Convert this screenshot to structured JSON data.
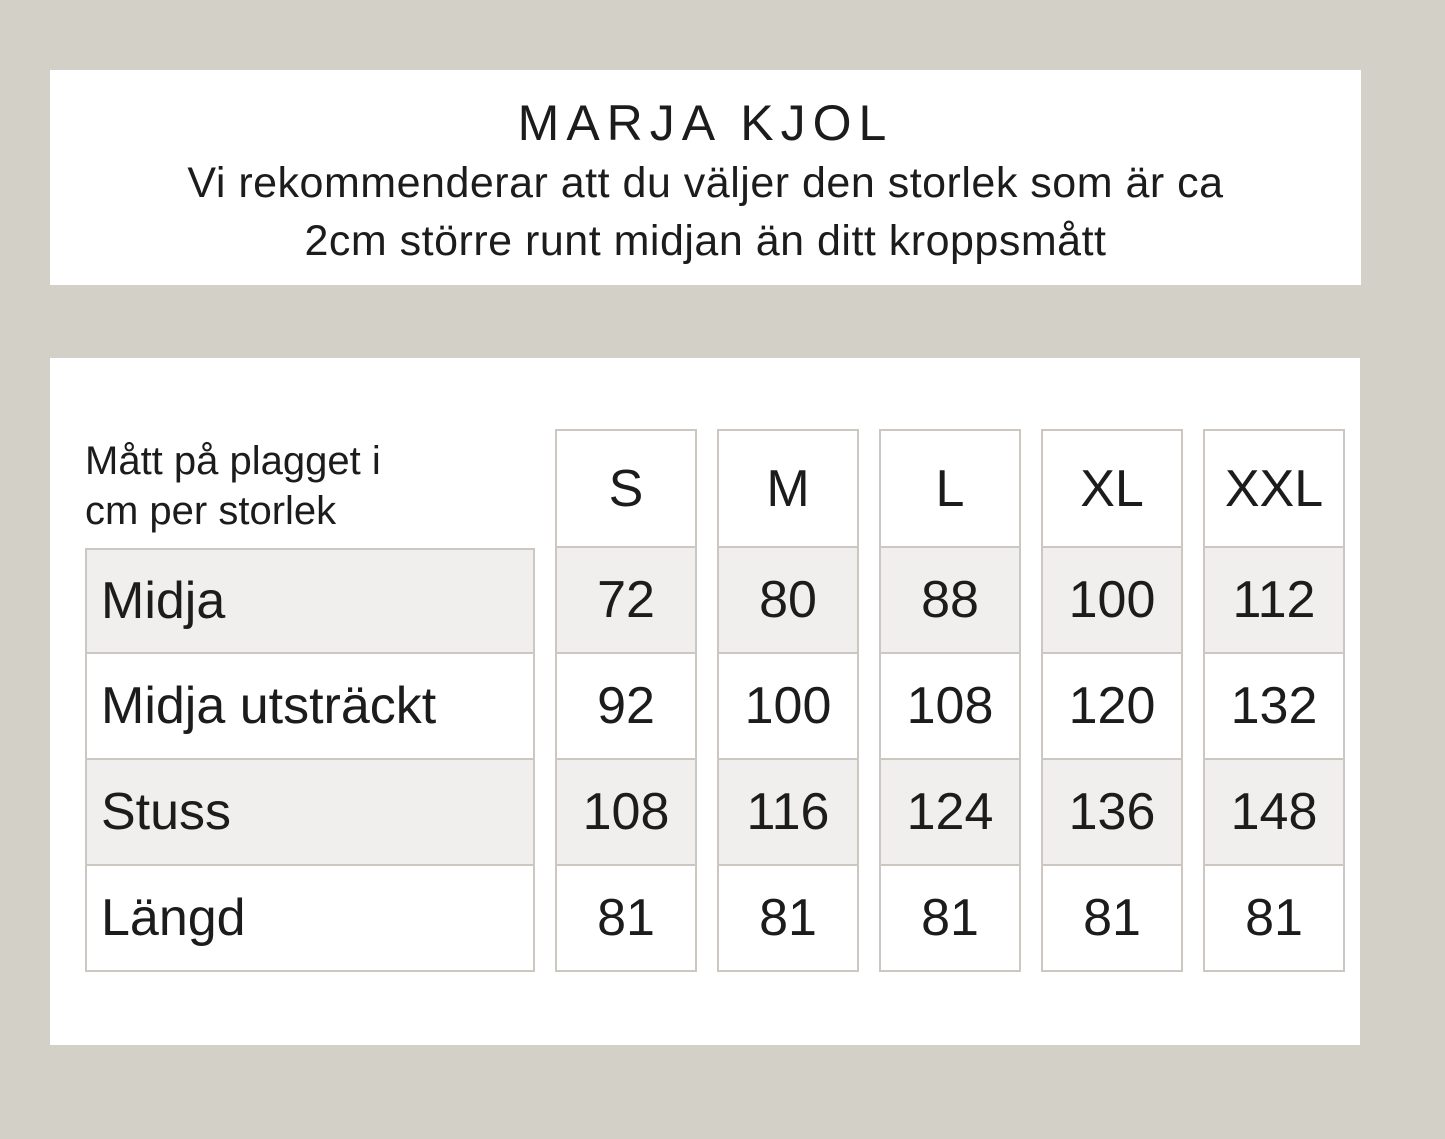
{
  "colors": {
    "background": "#d3d0c8",
    "panel": "#ffffff",
    "cell_shade": "#f0efed",
    "cell_border": "#ccc8c1",
    "text": "#1c1c1c"
  },
  "header": {
    "title": "MARJA KJOL",
    "subtitle_line1": "Vi rekommenderar att du väljer den storlek som är ca",
    "subtitle_line2": "2cm större runt midjan än ditt kroppsmått"
  },
  "table": {
    "measure_header_line1": "Mått på plagget i",
    "measure_header_line2": "cm per storlek",
    "sizes": [
      "S",
      "M",
      "L",
      "XL",
      "XXL"
    ],
    "rows": [
      {
        "label": "Midja",
        "values": [
          "72",
          "80",
          "88",
          "100",
          "112"
        ]
      },
      {
        "label": "Midja utsträckt",
        "values": [
          "92",
          "100",
          "108",
          "120",
          "132"
        ]
      },
      {
        "label": "Stuss",
        "values": [
          "108",
          "116",
          "124",
          "136",
          "148"
        ]
      },
      {
        "label": "Längd",
        "values": [
          "81",
          "81",
          "81",
          "81",
          "81"
        ]
      }
    ]
  }
}
